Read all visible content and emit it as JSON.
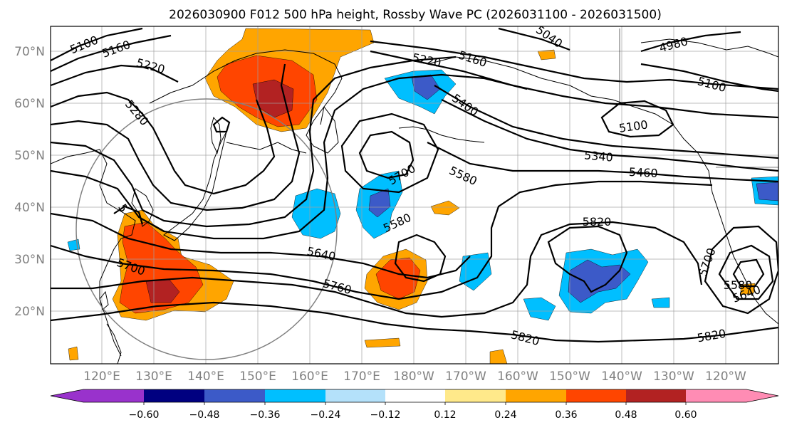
{
  "title": "2026030900 F012 500 hPa height, Rossby Wave PC (2026031100 - 2026031500)",
  "colors": {
    "pos_light": "#ffe98a",
    "pos_orange": "#ffa500",
    "pos_red": "#ff4500",
    "pos_dark": "#b22222",
    "pos_pink": "#ff8cb4",
    "neg_light": "#b4e1fa",
    "neg_sky": "#00bfff",
    "neg_royal": "#3c5ac8",
    "neg_navy": "#000080",
    "neg_purple": "#9932cc"
  },
  "lat_labels": [
    "70°N",
    "60°N",
    "50°N",
    "40°N",
    "30°N",
    "20°N"
  ],
  "lon_labels": [
    "120°E",
    "130°E",
    "140°E",
    "150°E",
    "160°E",
    "170°E",
    "180°W",
    "170°W",
    "160°W",
    "150°W",
    "140°W",
    "130°W",
    "120°W"
  ],
  "colorbar_ticks": [
    "−0.60",
    "−0.48",
    "−0.36",
    "−0.24",
    "−0.12",
    "0.12",
    "0.24",
    "0.36",
    "0.48",
    "0.60"
  ],
  "contour_labels": [
    "5100",
    "5160",
    "5220",
    "5280",
    "5040",
    "4980",
    "5220",
    "5160",
    "5400",
    "5100",
    "5100",
    "5340",
    "5460",
    "5700",
    "5580",
    "5580",
    "5640",
    "5760",
    "5820",
    "5820",
    "5820",
    "5700",
    "5580",
    "5640",
    "5700",
    "5"
  ]
}
